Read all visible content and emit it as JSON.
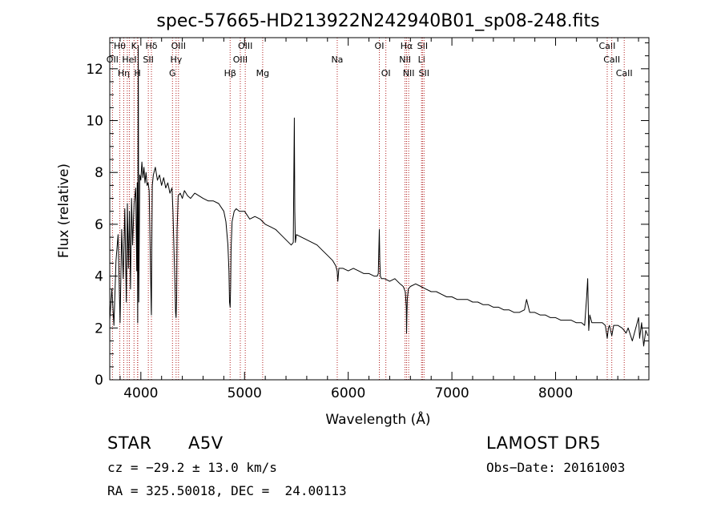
{
  "chart_data": {
    "type": "line",
    "title": "spec-57665-HD213922N242940B01_sp08-248.fits",
    "xlabel": "Wavelength (Å)",
    "ylabel": "Flux (relative)",
    "xlim": [
      3700,
      8900
    ],
    "ylim": [
      0,
      13.2
    ],
    "xticks": [
      4000,
      5000,
      6000,
      7000,
      8000
    ],
    "yticks": [
      0,
      2,
      4,
      6,
      8,
      10,
      12
    ],
    "grid": false,
    "series": [
      {
        "x": [
          3700,
          3720,
          3740,
          3760,
          3780,
          3800,
          3815,
          3830,
          3845,
          3860,
          3870,
          3880,
          3890,
          3900,
          3910,
          3920,
          3935,
          3950,
          3960,
          3965,
          3970,
          3975,
          3980,
          3990,
          4000,
          4010,
          4020,
          4030,
          4040,
          4050,
          4060,
          4070,
          4080,
          4090,
          4100,
          4102,
          4105,
          4110,
          4120,
          4140,
          4160,
          4180,
          4200,
          4220,
          4240,
          4260,
          4280,
          4300,
          4310,
          4320,
          4330,
          4335,
          4340,
          4345,
          4350,
          4360,
          4380,
          4400,
          4420,
          4450,
          4480,
          4520,
          4560,
          4600,
          4650,
          4700,
          4750,
          4800,
          4820,
          4840,
          4850,
          4855,
          4861,
          4866,
          4870,
          4880,
          4900,
          4920,
          4950,
          5000,
          5050,
          5100,
          5150,
          5200,
          5250,
          5300,
          5350,
          5400,
          5450,
          5470,
          5480,
          5485,
          5490,
          5500,
          5550,
          5600,
          5650,
          5700,
          5750,
          5800,
          5850,
          5880,
          5893,
          5900,
          5910,
          5950,
          6000,
          6050,
          6100,
          6150,
          6200,
          6250,
          6280,
          6290,
          6300,
          6305,
          6310,
          6320,
          6350,
          6400,
          6450,
          6500,
          6530,
          6550,
          6560,
          6563,
          6566,
          6570,
          6580,
          6600,
          6650,
          6700,
          6750,
          6800,
          6850,
          6900,
          6950,
          7000,
          7050,
          7100,
          7150,
          7200,
          7250,
          7300,
          7350,
          7400,
          7450,
          7500,
          7550,
          7600,
          7650,
          7700,
          7720,
          7750,
          7800,
          7850,
          7900,
          7950,
          8000,
          8050,
          8100,
          8150,
          8200,
          8250,
          8280,
          8300,
          8310,
          8315,
          8320,
          8330,
          8350,
          8400,
          8450,
          8480,
          8498,
          8510,
          8520,
          8542,
          8560,
          8600,
          8640,
          8662,
          8680,
          8700,
          8740,
          8760,
          8780,
          8800,
          8810,
          8830,
          8850,
          8870,
          8890
        ],
        "values": [
          2.3,
          3.5,
          2.1,
          4.6,
          5.6,
          2.2,
          5.8,
          3.9,
          6.6,
          3.0,
          6.8,
          4.3,
          6.5,
          3.5,
          7.0,
          5.2,
          6.8,
          7.4,
          4.2,
          7.6,
          2.2,
          12.9,
          3.0,
          7.9,
          7.7,
          8.4,
          7.8,
          8.2,
          7.6,
          8.0,
          7.5,
          7.6,
          7.3,
          5.0,
          2.7,
          2.5,
          4.8,
          7.5,
          7.9,
          8.2,
          7.7,
          7.9,
          7.5,
          7.8,
          7.4,
          7.6,
          7.2,
          7.4,
          6.5,
          5.0,
          3.6,
          2.6,
          2.4,
          3.2,
          5.8,
          7.1,
          7.2,
          7.0,
          7.3,
          7.1,
          7.0,
          7.2,
          7.1,
          7.0,
          6.9,
          6.9,
          6.8,
          6.5,
          6.1,
          5.2,
          4.2,
          3.0,
          2.8,
          3.6,
          5.0,
          6.1,
          6.5,
          6.6,
          6.5,
          6.5,
          6.2,
          6.3,
          6.2,
          6.0,
          5.9,
          5.8,
          5.6,
          5.4,
          5.2,
          5.3,
          10.1,
          6.5,
          5.3,
          5.6,
          5.5,
          5.4,
          5.3,
          5.2,
          5.0,
          4.8,
          4.6,
          4.4,
          4.2,
          3.8,
          4.3,
          4.3,
          4.2,
          4.3,
          4.2,
          4.1,
          4.1,
          4.0,
          4.0,
          4.1,
          5.8,
          4.6,
          4.0,
          3.9,
          3.9,
          3.8,
          3.9,
          3.7,
          3.6,
          3.4,
          2.8,
          1.8,
          2.5,
          3.1,
          3.5,
          3.6,
          3.7,
          3.6,
          3.5,
          3.4,
          3.4,
          3.3,
          3.2,
          3.2,
          3.1,
          3.1,
          3.1,
          3.0,
          3.0,
          2.9,
          2.9,
          2.8,
          2.8,
          2.7,
          2.7,
          2.6,
          2.6,
          2.7,
          3.1,
          2.6,
          2.6,
          2.5,
          2.5,
          2.4,
          2.4,
          2.3,
          2.3,
          2.3,
          2.2,
          2.2,
          2.1,
          3.2,
          3.9,
          2.8,
          1.9,
          2.5,
          2.2,
          2.2,
          2.2,
          2.1,
          1.6,
          2.0,
          2.1,
          1.7,
          2.1,
          2.1,
          2.0,
          1.9,
          1.8,
          2.0,
          1.5,
          1.8,
          2.1,
          2.4,
          1.6,
          2.2,
          1.3,
          1.9,
          1.7
        ]
      }
    ]
  },
  "lines": [
    {
      "w": 3726,
      "name": "OII",
      "row": 1
    },
    {
      "w": 3797,
      "name": "Hθ",
      "row": 0
    },
    {
      "w": 3835,
      "name": "Hη",
      "row": 2
    },
    {
      "w": 3869,
      "name": "",
      "row": -1
    },
    {
      "w": 3889,
      "name": "HeI",
      "row": 1
    },
    {
      "w": 3934,
      "name": "K",
      "row": 0
    },
    {
      "w": 3968,
      "name": "H",
      "row": 2
    },
    {
      "w": 3970,
      "name": "",
      "row": -1
    },
    {
      "w": 4072,
      "name": "SII",
      "row": 1
    },
    {
      "w": 4102,
      "name": "Hδ",
      "row": 0
    },
    {
      "w": 4305,
      "name": "G",
      "row": 2
    },
    {
      "w": 4340,
      "name": "Hγ",
      "row": 1
    },
    {
      "w": 4363,
      "name": "OIII",
      "row": 0
    },
    {
      "w": 4861,
      "name": "Hβ",
      "row": 2
    },
    {
      "w": 4959,
      "name": "OIII",
      "row": 1
    },
    {
      "w": 5007,
      "name": "OIII",
      "row": 0
    },
    {
      "w": 5175,
      "name": "Mg",
      "row": 2
    },
    {
      "w": 5894,
      "name": "Na",
      "row": 1
    },
    {
      "w": 6300,
      "name": "OI",
      "row": 0
    },
    {
      "w": 6363,
      "name": "OI",
      "row": 2
    },
    {
      "w": 6548,
      "name": "NII",
      "row": 1
    },
    {
      "w": 6563,
      "name": "Hα",
      "row": 0
    },
    {
      "w": 6583,
      "name": "NII",
      "row": 2
    },
    {
      "w": 6707,
      "name": "Li",
      "row": 1
    },
    {
      "w": 6716,
      "name": "SII",
      "row": 0
    },
    {
      "w": 6731,
      "name": "SII",
      "row": 2
    },
    {
      "w": 8498,
      "name": "CaII",
      "row": 0
    },
    {
      "w": 8542,
      "name": "CaII",
      "row": 1
    },
    {
      "w": 8662,
      "name": "CaII",
      "row": 2
    }
  ],
  "colors": {
    "axis": "#000000",
    "spectrum": "#000000",
    "line_marker": "#b22222"
  },
  "info": {
    "class": "STAR",
    "subclass": "A5V",
    "survey": "LAMOST DR5",
    "cz": "cz = −29.2 ± 13.0 km/s",
    "obs_date": "Obs−Date: 20161003",
    "radec": "RA = 325.50018, DEC =  24.00113"
  }
}
